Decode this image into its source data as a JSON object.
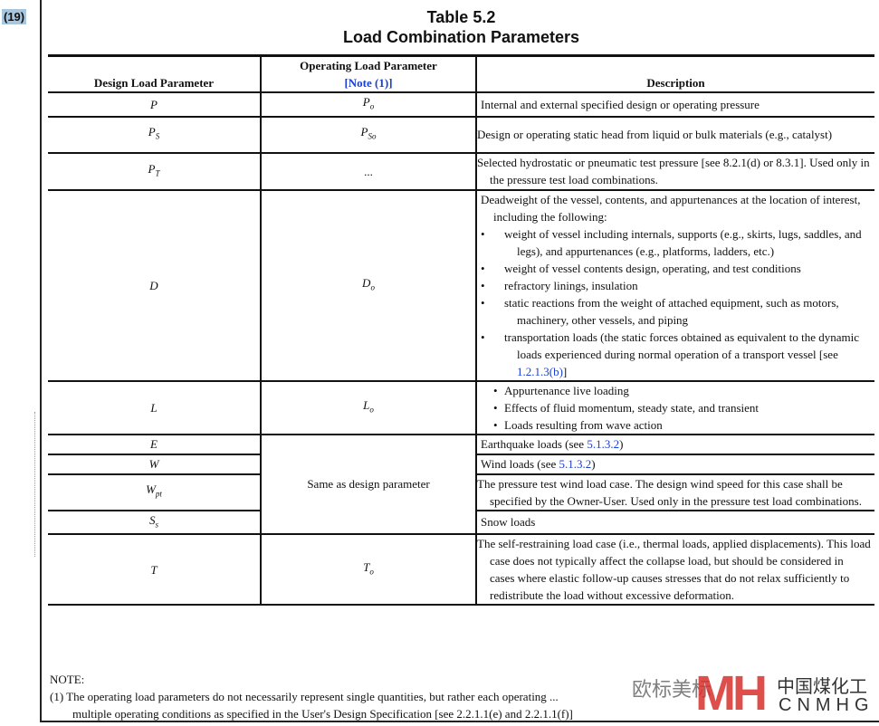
{
  "badge": "(19)",
  "title": {
    "line1": "Table 5.2",
    "line2": "Load Combination Parameters"
  },
  "headers": {
    "design": "Design Load Parameter",
    "operating": "Operating Load Parameter",
    "operating_note": "[Note (1)]",
    "description": "Description"
  },
  "rows": {
    "p": {
      "d": "P",
      "o": "P",
      "o_sub": "o",
      "desc": "Internal and external specified design or operating pressure"
    },
    "ps": {
      "d": "P",
      "d_sub": "S",
      "o": "P",
      "o_sub": "So",
      "desc": "Design or operating static head from liquid or bulk materials (e.g., catalyst)"
    },
    "pt": {
      "d": "P",
      "d_sub": "T",
      "o": "...",
      "desc": "Selected hydrostatic or pneumatic test pressure [see 8.2.1(d) or 8.3.1]. Used only in the pressure test load combinations."
    },
    "dd": {
      "d": "D",
      "o": "D",
      "o_sub": "o",
      "desc": "Deadweight of the vessel, contents, and appurtenances at the location of interest, including the following:",
      "bullets": [
        "weight of vessel including internals, supports (e.g., skirts, lugs, saddles, and legs), and appurtenances (e.g., platforms, ladders, etc.)",
        "weight of vessel contents design, operating, and test conditions",
        "refractory linings, insulation",
        "static reactions from the weight of attached equipment, such as motors, machinery, other vessels, and piping",
        "transportation loads (the static forces obtained as equivalent to the dynamic loads experienced during normal operation of a transport vessel [see "
      ],
      "bullet_link": "1.2.1.3(b)",
      "bullet_end": "]"
    },
    "l": {
      "d": "L",
      "o": "L",
      "o_sub": "o",
      "bullets": [
        "Appurtenance live loading",
        "Effects of fluid momentum, steady state, and transient",
        "Loads resulting from wave action"
      ]
    },
    "e": {
      "d": "E",
      "desc": "Earthquake loads (see ",
      "link": "5.1.3.2",
      "end": ")"
    },
    "w": {
      "d": "W",
      "desc": "Wind loads (see ",
      "link": "5.1.3.2",
      "end": ")"
    },
    "wpt": {
      "d": "W",
      "d_sub": "pt",
      "desc": "The pressure test wind load case. The design wind speed for this case shall be specified by the Owner-User. Used only in the pressure test load combinations."
    },
    "ss": {
      "d": "S",
      "d_sub": "s",
      "desc": "Snow loads"
    },
    "t": {
      "d": "T",
      "o": "T",
      "o_sub": "o",
      "desc": "The self-restraining load case (i.e., thermal loads, applied displacements). This load case does not typically affect the collapse load, but should be considered in cases where elastic follow-up causes stresses that do not relax sufficiently to redistribute the load without excessive deformation."
    },
    "same": "Same as design parameter"
  },
  "note": {
    "heading": "NOTE:",
    "line1": "(1) The operating load parameters do not necessarily represent single quantities, but rather each operating ...",
    "line2": "multiple operating conditions as specified in the User's Design Specification [see 2.2.1.1(e) and 2.2.1.1(f)]"
  },
  "watermark": {
    "zh": "欧标美标",
    "logo": "MH",
    "cn": "中国煤化工",
    "en": "CNMHG"
  },
  "colors": {
    "link": "#1a3fd6",
    "badge": "#a9c6df",
    "logo": "#d9302b"
  }
}
